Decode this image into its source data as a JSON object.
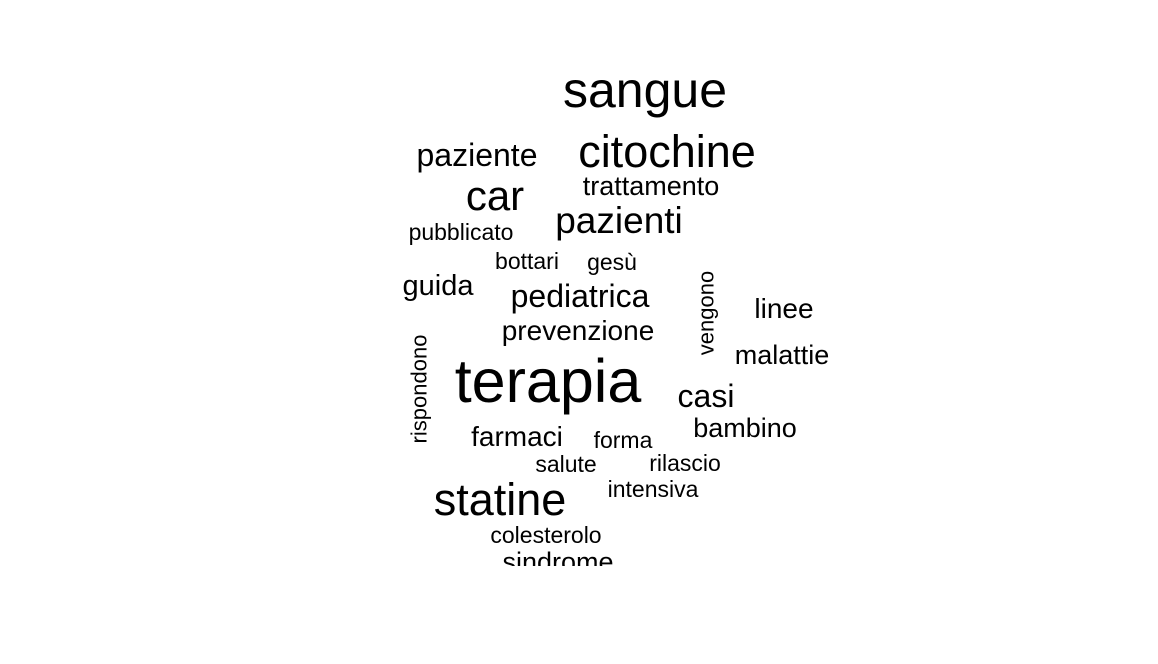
{
  "chart_data": {
    "type": "wordcloud",
    "color": "#000000",
    "words": [
      {
        "text": "sangue",
        "weight": 9
      },
      {
        "text": "citochine",
        "weight": 8
      },
      {
        "text": "paziente",
        "weight": 5
      },
      {
        "text": "car",
        "weight": 8
      },
      {
        "text": "trattamento",
        "weight": 4
      },
      {
        "text": "pazienti",
        "weight": 7
      },
      {
        "text": "pubblicato",
        "weight": 3
      },
      {
        "text": "bottari",
        "weight": 3
      },
      {
        "text": "gesù",
        "weight": 3
      },
      {
        "text": "guida",
        "weight": 4
      },
      {
        "text": "pediatrica",
        "weight": 5
      },
      {
        "text": "vengono",
        "weight": 3,
        "rotated": true
      },
      {
        "text": "linee",
        "weight": 4
      },
      {
        "text": "prevenzione",
        "weight": 4
      },
      {
        "text": "rispondono",
        "weight": 3,
        "rotated": true
      },
      {
        "text": "malattie",
        "weight": 4
      },
      {
        "text": "terapia",
        "weight": 12
      },
      {
        "text": "casi",
        "weight": 5
      },
      {
        "text": "bambino",
        "weight": 4
      },
      {
        "text": "farmaci",
        "weight": 4
      },
      {
        "text": "forma",
        "weight": 3
      },
      {
        "text": "salute",
        "weight": 3
      },
      {
        "text": "rilascio",
        "weight": 3
      },
      {
        "text": "statine",
        "weight": 9
      },
      {
        "text": "intensiva",
        "weight": 3
      },
      {
        "text": "colesterolo",
        "weight": 3
      },
      {
        "text": "sindrome",
        "weight": 4
      }
    ]
  }
}
